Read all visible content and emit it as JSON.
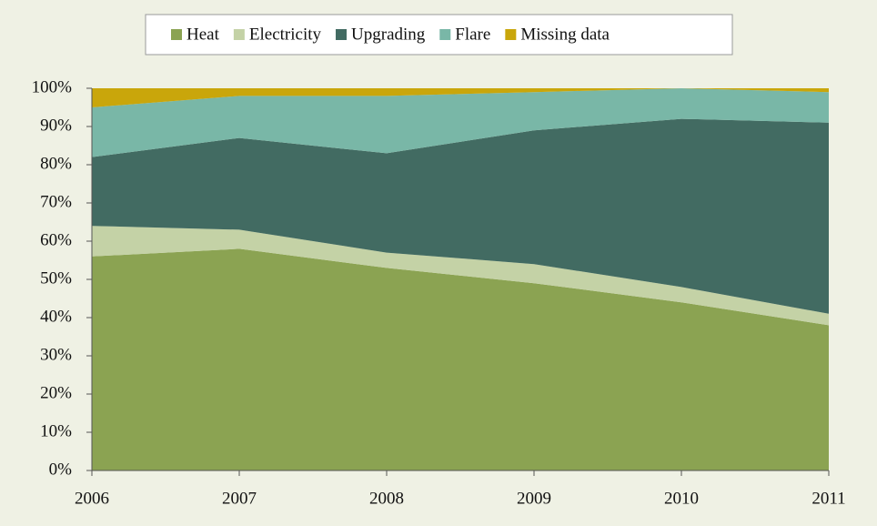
{
  "chart_data": {
    "type": "stacked_area",
    "categories": [
      "2006",
      "2007",
      "2008",
      "2009",
      "2010",
      "2011"
    ],
    "series": [
      {
        "name": "Heat",
        "color": "#8ba352",
        "values": [
          56,
          58,
          53,
          49,
          44,
          38
        ]
      },
      {
        "name": "Electricity",
        "color": "#c4d2a6",
        "values": [
          8,
          5,
          4,
          5,
          4,
          3
        ]
      },
      {
        "name": "Upgrading",
        "color": "#426b62",
        "values": [
          18,
          24,
          26,
          35,
          44,
          50
        ]
      },
      {
        "name": "Flare",
        "color": "#79b7a7",
        "values": [
          13,
          11,
          15,
          10,
          8,
          8
        ]
      },
      {
        "name": "Missing data",
        "color": "#c9a60b",
        "values": [
          5,
          2,
          2,
          1,
          0,
          1
        ]
      }
    ],
    "ylim": [
      0,
      100
    ],
    "yticks": [
      {
        "value": 0,
        "label": "0%"
      },
      {
        "value": 10,
        "label": "10%"
      },
      {
        "value": 20,
        "label": "20%"
      },
      {
        "value": 30,
        "label": "30%"
      },
      {
        "value": 40,
        "label": "40%"
      },
      {
        "value": 50,
        "label": "50%"
      },
      {
        "value": 60,
        "label": "60%"
      },
      {
        "value": 70,
        "label": "70%"
      },
      {
        "value": 80,
        "label": "80%"
      },
      {
        "value": 90,
        "label": "90%"
      },
      {
        "value": 100,
        "label": "100%"
      }
    ],
    "legend": "top"
  }
}
